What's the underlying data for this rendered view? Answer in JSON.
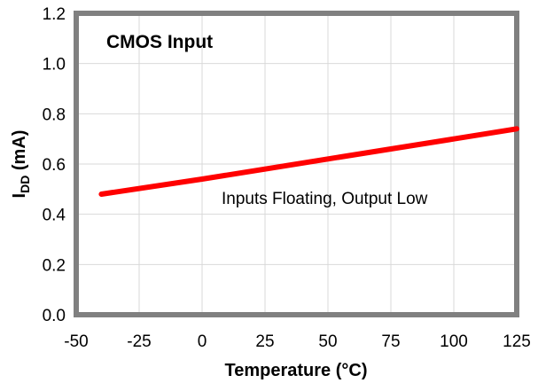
{
  "chart_data": {
    "type": "line",
    "title": "CMOS Input",
    "xlabel": "Temperature (°C)",
    "ylabel": {
      "main": "I",
      "sub": "DD",
      "rest": " (mA)"
    },
    "xlim": [
      -50,
      125
    ],
    "ylim": [
      0,
      1.2
    ],
    "xticks": [
      "-50",
      "-25",
      "0",
      "25",
      "50",
      "75",
      "100",
      "125"
    ],
    "yticks": [
      "0.0",
      "0.2",
      "0.4",
      "0.6",
      "0.8",
      "1.0",
      "1.2"
    ],
    "grid": true,
    "annotation": "Inputs Floating, Output Low",
    "series": [
      {
        "color": "#ff0000",
        "x": [
          -40,
          0,
          25,
          50,
          75,
          100,
          125
        ],
        "y": [
          0.48,
          0.54,
          0.58,
          0.62,
          0.66,
          0.7,
          0.74
        ]
      }
    ]
  }
}
